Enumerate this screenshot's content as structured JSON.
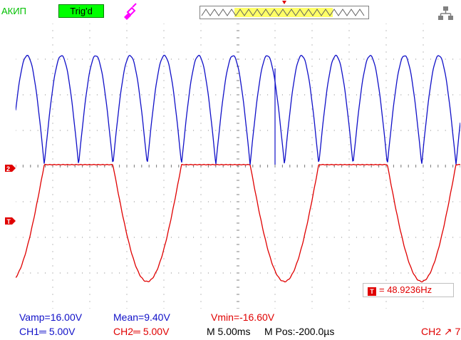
{
  "header": {
    "brand": "АКИП",
    "trigger_status": "Trig'd"
  },
  "colors": {
    "ch1": "#1010c8",
    "ch2": "#e00000",
    "grid": "#808080",
    "trig_status_bg": "#00ff00"
  },
  "measurements": {
    "vamp": "Vamp=16.00V",
    "mean": "Mean=9.40V",
    "vmin": "Vmin=-16.60V"
  },
  "status": {
    "ch1_scale": "CH1═ 5.00V",
    "ch2_scale": "CH2═ 5.00V",
    "timebase": "M 5.00ms",
    "mpos": "M Pos:-200.0µs",
    "trigger_src": "CH2 ↗ 7."
  },
  "frequency": {
    "label": "= 48.9236Hz"
  },
  "icons": {
    "probe": "probe-icon",
    "usb": "usb-icon",
    "trigger_marker": "trigger-position-icon"
  }
}
